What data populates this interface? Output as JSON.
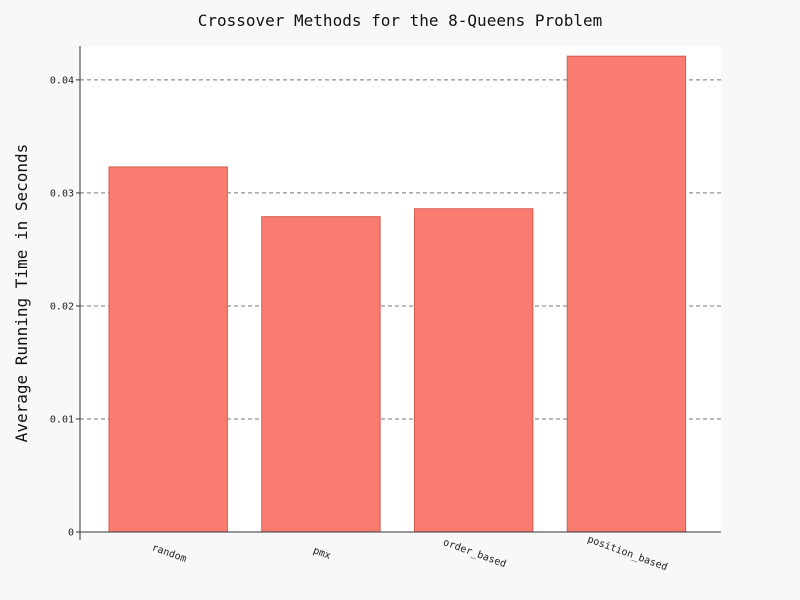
{
  "chart_data": {
    "type": "bar",
    "title": "Crossover Methods for the 8-Queens Problem",
    "xlabel": "",
    "ylabel": "Average Running Time in Seconds",
    "categories": [
      "random",
      "pmx",
      "order_based",
      "position_based"
    ],
    "values": [
      0.0323,
      0.0279,
      0.0286,
      0.0421
    ],
    "ylim": [
      0,
      0.043
    ],
    "yticks": [
      0,
      0.01,
      0.02,
      0.03,
      0.04
    ],
    "ytick_labels": [
      "0",
      "0.01",
      "0.02",
      "0.03",
      "0.04"
    ],
    "grid": "horizontal-dashed",
    "legend": "none",
    "colors": {
      "bar_fill": "#f87c70",
      "bar_stroke": "#d65a50",
      "plot_background": "#ffffff",
      "page_background": "#f8f8f8",
      "grid": "#777777",
      "axis": "#333333"
    }
  }
}
